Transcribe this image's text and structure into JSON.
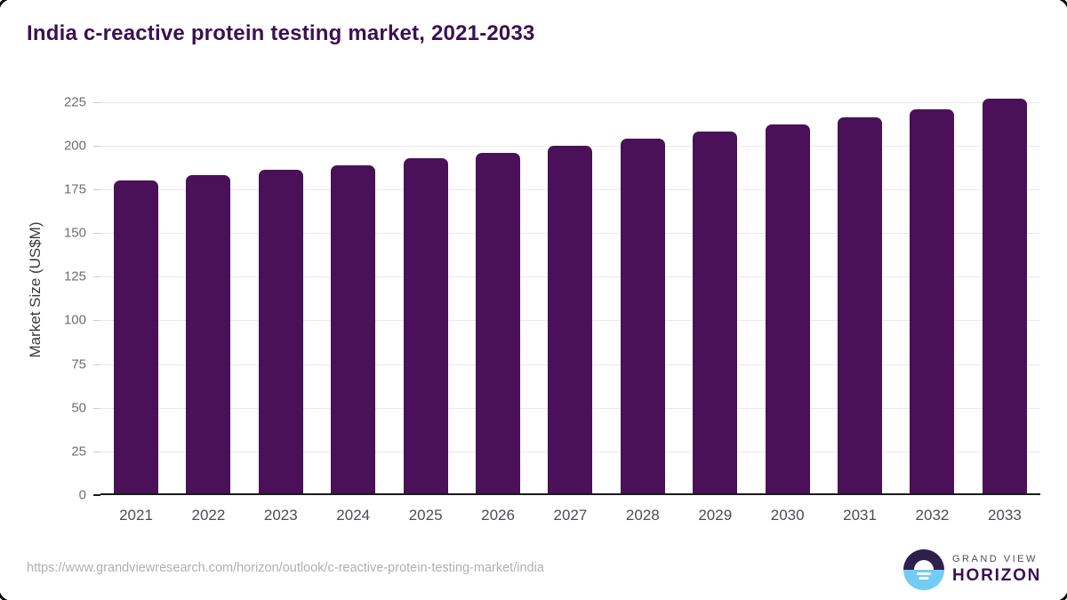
{
  "header": {
    "title": "India c-reactive protein testing market, 2021-2033"
  },
  "chart_data": {
    "type": "bar",
    "title": "India c-reactive protein testing market, 2021-2033",
    "categories": [
      "2021",
      "2022",
      "2023",
      "2024",
      "2025",
      "2026",
      "2027",
      "2028",
      "2029",
      "2030",
      "2031",
      "2032",
      "2033"
    ],
    "values": [
      180,
      183,
      186,
      189,
      193,
      196,
      200,
      204,
      208,
      212,
      216,
      221,
      227
    ],
    "xlabel": "",
    "ylabel": "Market Size (US$M)",
    "ylim": [
      0,
      233
    ],
    "yticks": [
      0,
      25,
      50,
      75,
      100,
      125,
      150,
      175,
      200,
      225
    ],
    "grid": true,
    "legend": "none",
    "bar_color": "#4a1158"
  },
  "footer": {
    "source_url": "https://www.grandviewresearch.com/horizon/outlook/c-reactive-protein-testing-market/india",
    "logo": {
      "top": "GRAND VIEW",
      "bottom": "HORIZON"
    }
  },
  "colors": {
    "bar": "#4a1158",
    "title": "#3b1053",
    "axis_text": "#6f6f6f",
    "x_label": "#4c4c55",
    "gridline": "#e9e9ec",
    "axis_line": "#1a1a1a",
    "url_text": "#b0b0b3",
    "logo_purple": "#2f1f4d",
    "logo_blue": "#72cdf4"
  }
}
